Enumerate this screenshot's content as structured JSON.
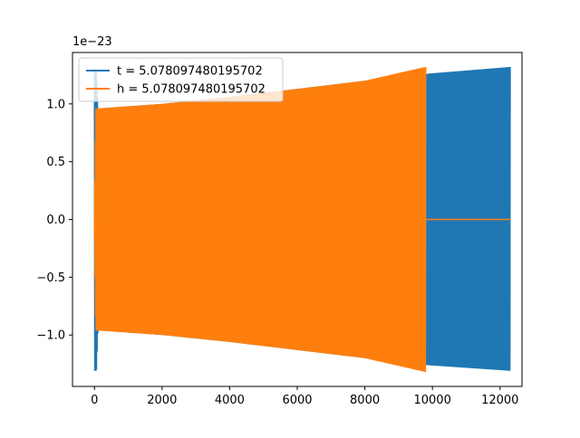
{
  "chart_data": {
    "type": "line",
    "offset_text": "1e−23",
    "xlim": [
      -650,
      12650
    ],
    "ylim": [
      -1.445,
      1.445
    ],
    "x_ticks": [
      {
        "value": 0,
        "label": "0"
      },
      {
        "value": 2000,
        "label": "2000"
      },
      {
        "value": 4000,
        "label": "4000"
      },
      {
        "value": 6000,
        "label": "6000"
      },
      {
        "value": 8000,
        "label": "8000"
      },
      {
        "value": 10000,
        "label": "10000"
      },
      {
        "value": 12000,
        "label": "12000"
      }
    ],
    "y_ticks": [
      {
        "value": -1.0,
        "label": "−1.0"
      },
      {
        "value": -0.5,
        "label": "−0.5"
      },
      {
        "value": 0.0,
        "label": "0.0"
      },
      {
        "value": 0.5,
        "label": "0.5"
      },
      {
        "value": 1.0,
        "label": "1.0"
      }
    ],
    "legend_position": "upper-left",
    "series": [
      {
        "name": "t = 5.078097480195702",
        "color": "#1f77b4",
        "kind": "oscillation-envelope",
        "x_start": 0,
        "x_end": 12300,
        "envelope_upper": [
          [
            0,
            1.3
          ],
          [
            60,
            1.3
          ],
          [
            100,
            0.96
          ],
          [
            2000,
            1.0
          ],
          [
            4000,
            1.06
          ],
          [
            6000,
            1.13
          ],
          [
            8000,
            1.2
          ],
          [
            9800,
            1.26
          ],
          [
            12300,
            1.32
          ]
        ],
        "envelope_lower": [
          [
            0,
            -1.31
          ],
          [
            60,
            -1.31
          ],
          [
            100,
            -0.96
          ],
          [
            2000,
            -1.0
          ],
          [
            4000,
            -1.06
          ],
          [
            6000,
            -1.13
          ],
          [
            8000,
            -1.2
          ],
          [
            9800,
            -1.26
          ],
          [
            12300,
            -1.31
          ]
        ]
      },
      {
        "name": "h = 5.078097480195702",
        "color": "#ff7f0e",
        "kind": "oscillation-envelope",
        "x_start": 0,
        "x_end": 9800,
        "zero_line_to": 12300,
        "envelope_upper": [
          [
            0,
            0.0
          ],
          [
            40,
            0.96
          ],
          [
            2000,
            1.0
          ],
          [
            4000,
            1.06
          ],
          [
            6000,
            1.13
          ],
          [
            8000,
            1.2
          ],
          [
            9800,
            1.32
          ]
        ],
        "envelope_lower": [
          [
            0,
            0.0
          ],
          [
            40,
            -0.96
          ],
          [
            2000,
            -1.0
          ],
          [
            4000,
            -1.06
          ],
          [
            6000,
            -1.13
          ],
          [
            8000,
            -1.2
          ],
          [
            9800,
            -1.32
          ]
        ]
      }
    ]
  }
}
